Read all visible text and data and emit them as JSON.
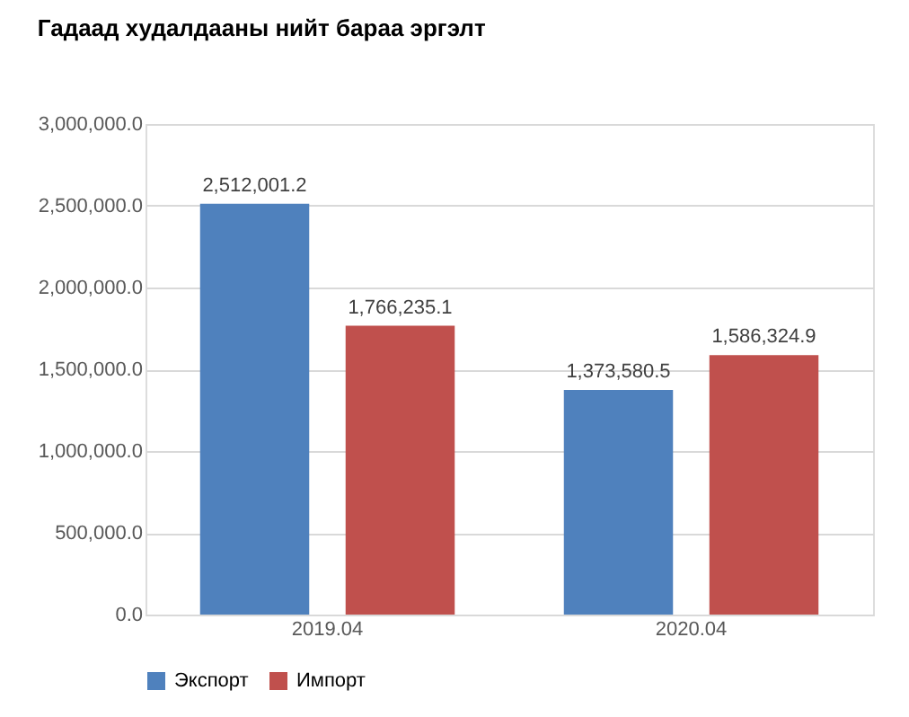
{
  "chart_data": {
    "type": "bar",
    "title": "Гадаад худалдааны нийт бараа эргэлт",
    "categories": [
      "2019.04",
      "2020.04"
    ],
    "series": [
      {
        "name": "Экспорт",
        "color": "#4f81bd",
        "values": [
          2512001.2,
          1373580.5
        ],
        "value_labels": [
          "2,512,001.2",
          "1,373,580.5"
        ]
      },
      {
        "name": "Импорт",
        "color": "#c0504d",
        "values": [
          1766235.1,
          1586324.9
        ],
        "value_labels": [
          "1,766,235.1",
          "1,586,324.9"
        ]
      }
    ],
    "ylim": [
      0,
      3000000
    ],
    "yticks": [
      {
        "value": 0,
        "label": "0.0"
      },
      {
        "value": 500000,
        "label": "500,000.0"
      },
      {
        "value": 1000000,
        "label": "1,000,000.0"
      },
      {
        "value": 1500000,
        "label": "1,500,000.0"
      },
      {
        "value": 2000000,
        "label": "2,000,000.0"
      },
      {
        "value": 2500000,
        "label": "2,500,000.0"
      },
      {
        "value": 3000000,
        "label": "3,000,000.0"
      }
    ],
    "grid": "y",
    "legend": "bottom"
  }
}
